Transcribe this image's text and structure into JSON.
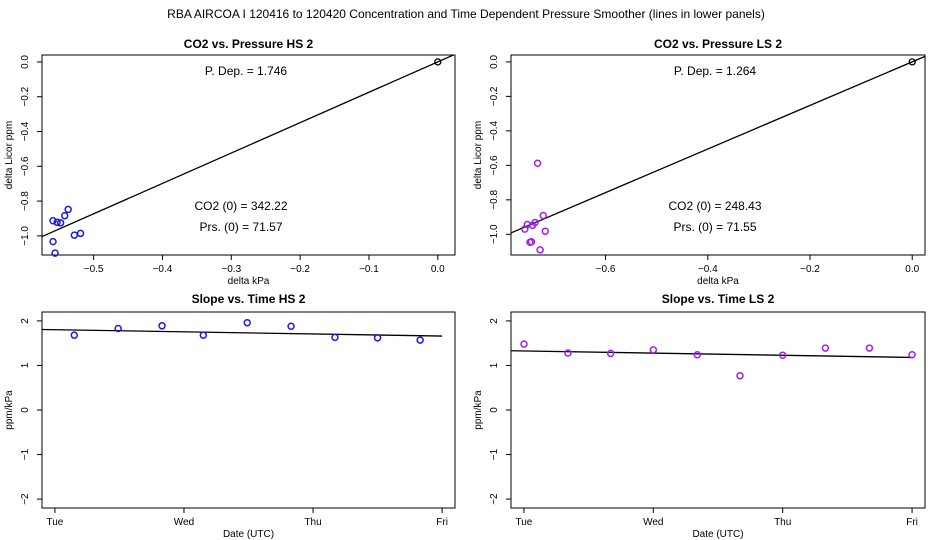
{
  "main_title": "RBA   AIRCOA I   120416 to 120420   Concentration and Time Dependent Pressure Smoother (lines in lower panels)",
  "chart_data": [
    {
      "id": "p1",
      "type": "scatter",
      "title": "CO2 vs. Pressure HS 2",
      "xlabel": "delta kPa",
      "ylabel": "delta Licor ppm",
      "xlim": [
        -0.575,
        0.025
      ],
      "ylim": [
        -1.11,
        0.04
      ],
      "xticks": [
        -0.5,
        -0.4,
        -0.3,
        -0.2,
        -0.1,
        0.0
      ],
      "xtick_labels": [
        "−0.5",
        "−0.4",
        "−0.3",
        "−0.2",
        "−0.1",
        "0.0"
      ],
      "yticks": [
        0.0,
        -0.2,
        -0.4,
        -0.6,
        -0.8,
        -1.0
      ],
      "ytick_labels": [
        "0.0",
        "−0.2",
        "−0.4",
        "−0.6",
        "−0.8",
        "−1.0"
      ],
      "color": "#1a1ae6",
      "points": [
        {
          "x": -0.559,
          "y": -0.913
        },
        {
          "x": -0.553,
          "y": -0.922
        },
        {
          "x": -0.548,
          "y": -0.925
        },
        {
          "x": -0.542,
          "y": -0.884
        },
        {
          "x": -0.537,
          "y": -0.848
        },
        {
          "x": -0.528,
          "y": -0.996
        },
        {
          "x": -0.519,
          "y": -0.986
        },
        {
          "x": -0.559,
          "y": -1.033
        },
        {
          "x": -0.556,
          "y": -1.099
        }
      ],
      "ref_point": {
        "x": 0.0,
        "y": 0.0
      },
      "fit_line": {
        "x": [
          -0.575,
          0.025
        ],
        "y": [
          -1.004,
          0.044
        ]
      },
      "annotations": {
        "pdep": "P. Dep. =  1.746",
        "co2": "CO2 (0) =  342.22",
        "prs": "Prs. (0) =  71.57"
      }
    },
    {
      "id": "p2",
      "type": "scatter",
      "title": "CO2 vs. Pressure LS 2",
      "xlabel": "delta kPa",
      "ylabel": "delta Licor ppm",
      "xlim": [
        -0.785,
        0.025
      ],
      "ylim": [
        -1.12,
        0.04
      ],
      "xticks": [
        -0.6,
        -0.4,
        -0.2,
        0.0
      ],
      "xtick_labels": [
        "−0.6",
        "−0.4",
        "−0.2",
        "0.0"
      ],
      "yticks": [
        0.0,
        -0.2,
        -0.4,
        -0.6,
        -0.8,
        -1.0
      ],
      "ytick_labels": [
        "0.0",
        "−0.2",
        "−0.4",
        "−0.6",
        "−0.8",
        "−1.0"
      ],
      "color": "#a020f0",
      "points": [
        {
          "x": -0.758,
          "y": -0.97
        },
        {
          "x": -0.753,
          "y": -0.943
        },
        {
          "x": -0.748,
          "y": -1.046
        },
        {
          "x": -0.745,
          "y": -1.043
        },
        {
          "x": -0.743,
          "y": -0.948
        },
        {
          "x": -0.738,
          "y": -0.932
        },
        {
          "x": -0.733,
          "y": -0.588
        },
        {
          "x": -0.728,
          "y": -1.09
        },
        {
          "x": -0.722,
          "y": -0.891
        },
        {
          "x": -0.718,
          "y": -0.982
        }
      ],
      "ref_point": {
        "x": 0.0,
        "y": 0.0
      },
      "fit_line": {
        "x": [
          -0.785,
          0.025
        ],
        "y": [
          -0.992,
          0.032
        ]
      },
      "annotations": {
        "pdep": "P. Dep. =  1.264",
        "co2": "CO2 (0) =  248.43",
        "prs": "Prs. (0) =  71.55"
      }
    },
    {
      "id": "p3",
      "type": "scatter",
      "title": "Slope vs. Time HS 2",
      "xlabel": "Date (UTC)",
      "ylabel": "ppm/kPa",
      "xlim": [
        -0.1,
        3.1
      ],
      "ylim": [
        -2.2,
        2.2
      ],
      "xticks": [
        0,
        1,
        2,
        3
      ],
      "xtick_labels": [
        "Tue",
        "Wed",
        "Thu",
        "Fri"
      ],
      "yticks": [
        2,
        1,
        0,
        -1,
        -2
      ],
      "ytick_labels": [
        "2",
        "1",
        "0",
        "−1",
        "−2"
      ],
      "color": "#1a1ae6",
      "points": [
        {
          "x": 0.15,
          "y": 1.68
        },
        {
          "x": 0.49,
          "y": 1.83
        },
        {
          "x": 0.83,
          "y": 1.89
        },
        {
          "x": 1.15,
          "y": 1.68
        },
        {
          "x": 1.49,
          "y": 1.96
        },
        {
          "x": 1.83,
          "y": 1.88
        },
        {
          "x": 2.17,
          "y": 1.63
        },
        {
          "x": 2.5,
          "y": 1.62
        },
        {
          "x": 2.83,
          "y": 1.57
        }
      ],
      "fit_line": {
        "x": [
          -0.15,
          3.0
        ],
        "y": [
          1.81,
          1.66
        ]
      }
    },
    {
      "id": "p4",
      "type": "scatter",
      "title": "Slope vs. Time LS 2",
      "xlabel": "Date (UTC)",
      "ylabel": "ppm/kPa",
      "xlim": [
        -0.1,
        3.1
      ],
      "ylim": [
        -2.2,
        2.2
      ],
      "xticks": [
        0,
        1,
        2,
        3
      ],
      "xtick_labels": [
        "Tue",
        "Wed",
        "Thu",
        "Fri"
      ],
      "yticks": [
        2,
        1,
        0,
        -1,
        -2
      ],
      "ytick_labels": [
        "2",
        "1",
        "0",
        "−1",
        "−2"
      ],
      "color": "#a020f0",
      "points": [
        {
          "x": 0.0,
          "y": 1.48
        },
        {
          "x": 0.34,
          "y": 1.28
        },
        {
          "x": 0.67,
          "y": 1.27
        },
        {
          "x": 1.0,
          "y": 1.35
        },
        {
          "x": 1.34,
          "y": 1.24
        },
        {
          "x": 1.67,
          "y": 0.77
        },
        {
          "x": 2.0,
          "y": 1.23
        },
        {
          "x": 2.33,
          "y": 1.39
        },
        {
          "x": 2.67,
          "y": 1.39
        },
        {
          "x": 3.0,
          "y": 1.24
        }
      ],
      "fit_line": {
        "x": [
          -0.1,
          3.0
        ],
        "y": [
          1.33,
          1.18
        ]
      }
    }
  ]
}
